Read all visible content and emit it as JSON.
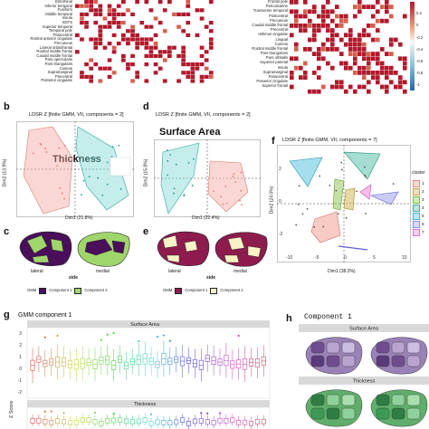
{
  "top_left_regions": [
    "Entorhinal",
    "Inferior temporal",
    "Fusiform",
    "Middle temporal",
    "Insula",
    "BSTS",
    "Superior temporal",
    "Temporal pole",
    "Paracentral",
    "Rostral anterior cingulate",
    "Precuneus",
    "Lateral orbitofrontal",
    "Rostral middle frontal",
    "Caudal middle frontal",
    "Pars opercularis",
    "Pars triangularis",
    "Cuneus",
    "Supramarginal",
    "Precentral",
    "Posterior cingulate"
  ],
  "top_right_regions": [
    "Frontal pole",
    "Pericalcarine",
    "Transverse temporal",
    "Postcentral",
    "Precuneus",
    "Caudal middle frontal",
    "Precentral",
    "Isthmus cingulate",
    "Lingual",
    "Cuneus",
    "Rostral middle frontal",
    "Pars triangularis",
    "Pars orbitalis",
    "Superior parietal",
    "Insula",
    "Supramarginal",
    "Paracentral",
    "Posterior cingulate",
    "Superior frontal"
  ],
  "colorbar_ticks": [
    "",
    "0.2",
    "0",
    "-0.2",
    "-0.4",
    "-0.6",
    "-0.8",
    "-1"
  ],
  "panels": {
    "b": {
      "letter": "b",
      "method": "LDSR Z [finite GMM, VII, components = 2]",
      "title": "Thickness",
      "xlabel": "Dim1 (21.8%)",
      "ylabel": "Dim2 (13.9%)"
    },
    "d": {
      "letter": "d",
      "method": "LDSR Z [finite GMM, VII, components = 2]",
      "title": "Surface Area",
      "xlabel": "Dim1 (22.4%)",
      "ylabel": "Dim2 (15.8%)"
    },
    "f": {
      "letter": "f",
      "method": "LDSR Z [finite GMM, VII, components = 7]",
      "xlabel": "Dim1 (38.3%)",
      "ylabel": "Dim2 (24.0%)",
      "xticks": [
        "-10",
        "-5",
        "0",
        "5",
        "10"
      ],
      "yticks": [
        "2",
        "0",
        "-2"
      ],
      "legend_title": "cluster",
      "legend_items": [
        "1",
        "2",
        "3",
        "4",
        "5",
        "6",
        "7"
      ]
    },
    "c": {
      "letter": "c",
      "lateral": "lateral",
      "medial": "medial",
      "side": "side",
      "legend_title": "GMM",
      "comp1": "Component 1",
      "comp2": "Component 2"
    },
    "e": {
      "letter": "e",
      "lateral": "lateral",
      "medial": "medial",
      "side": "side",
      "legend_title": "GMM",
      "comp1": "Component 1",
      "comp2": "Component 2"
    },
    "g": {
      "letter": "g",
      "title": "GMM component  1",
      "strip1": "Surface Area",
      "strip2": "Thickness",
      "ylabel": "Z Score",
      "yticks": [
        "3",
        "2",
        "1",
        "0",
        "-1",
        "-2"
      ]
    },
    "h": {
      "letter": "h",
      "title": "Component  1",
      "strip1": "Surface Area",
      "strip2": "Thickness"
    }
  },
  "legend_b": {
    "title": "cluster",
    "items": [
      "1",
      "2"
    ]
  },
  "colors": {
    "red": "#b2182b",
    "blue": "#2166ac",
    "pink": "#f4a6a0",
    "teal": "#7fd6d3",
    "purple": "#4a0f5a",
    "green": "#9fd66b",
    "maroon": "#8e1b4e",
    "cream": "#f7f3c4",
    "cluster": [
      "#f08b7f",
      "#c8a83a",
      "#7cbd3b",
      "#37b39b",
      "#38b7d6",
      "#8a8ef0",
      "#ef6fd4"
    ]
  }
}
